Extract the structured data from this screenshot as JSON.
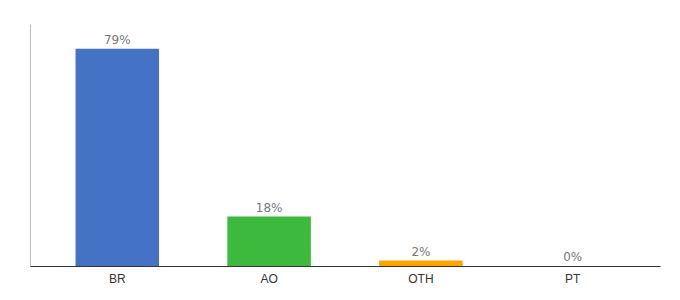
{
  "chart_data": {
    "type": "bar",
    "categories": [
      "BR",
      "AO",
      "OTH",
      "PT"
    ],
    "values": [
      79,
      18,
      2,
      0
    ],
    "value_labels": [
      "79%",
      "18%",
      "2%",
      "0%"
    ],
    "data_labels": true,
    "colors": [
      "#4472c4",
      "#3dba3d",
      "#ffa500",
      "#4472c4"
    ],
    "ylim": [
      0,
      88
    ],
    "tick_labels": "x",
    "grid": false
  }
}
